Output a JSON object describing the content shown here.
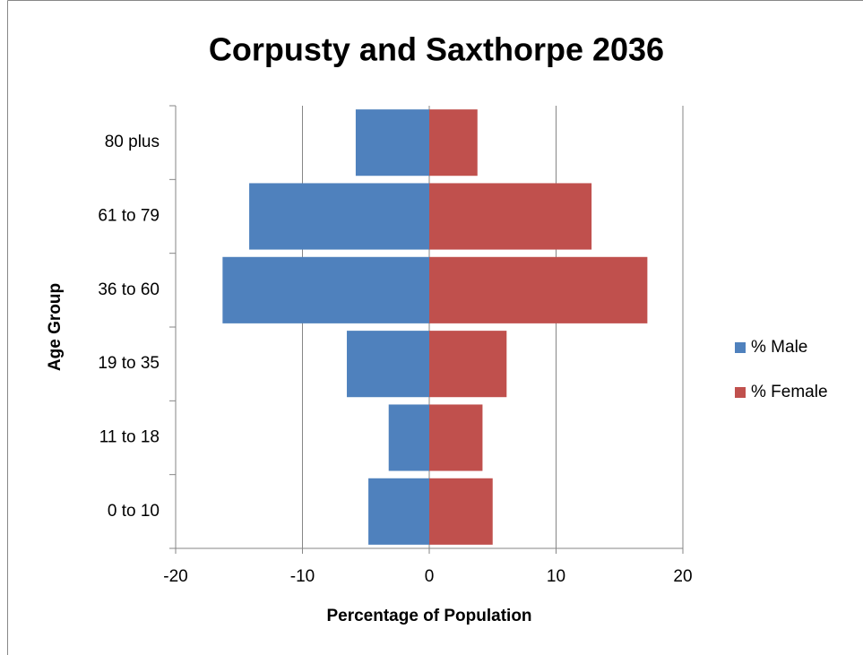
{
  "chart_data": {
    "type": "bar",
    "orientation": "horizontal",
    "title": "Corpusty and Saxthorpe 2036",
    "x_label": "Percentage of Population",
    "y_label": "Age Group",
    "categories": [
      "0 to 10",
      "11 to 18",
      "19 to 35",
      "36 to 60",
      "61 to 79",
      "80 plus"
    ],
    "series": [
      {
        "name": "% Male",
        "color": "#4f81bd",
        "values": [
          -4.8,
          -3.2,
          -6.5,
          -16.3,
          -14.2,
          -5.8
        ]
      },
      {
        "name": "% Female",
        "color": "#c0504d",
        "values": [
          5.0,
          4.2,
          6.1,
          17.2,
          12.8,
          3.8
        ]
      }
    ],
    "xlim": [
      -20,
      20
    ],
    "xticks": [
      -20,
      -10,
      0,
      10,
      20
    ],
    "grid": true,
    "legend": "right"
  }
}
